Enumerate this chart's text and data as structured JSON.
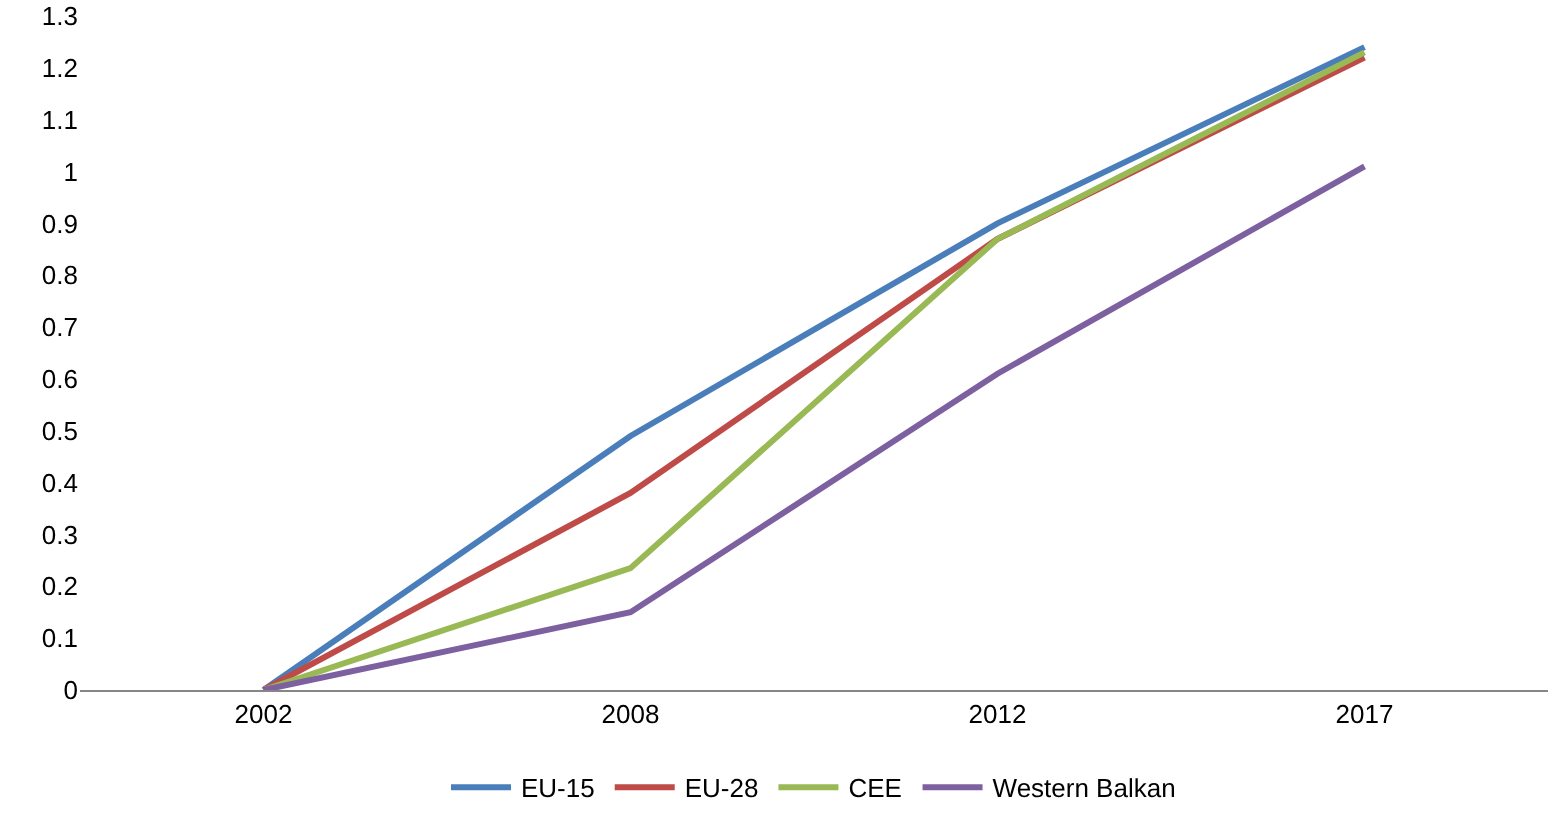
{
  "chart_data": {
    "type": "line",
    "categories": [
      "2002",
      "2008",
      "2012",
      "2017"
    ],
    "series": [
      {
        "name": "EU-15",
        "color": "#4a7ebb",
        "values": [
          0,
          0.49,
          0.9,
          1.24
        ]
      },
      {
        "name": "EU-28",
        "color": "#be4b48",
        "values": [
          0,
          0.38,
          0.87,
          1.22
        ]
      },
      {
        "name": "CEE",
        "color": "#98b954",
        "values": [
          0,
          0.235,
          0.87,
          1.23
        ]
      },
      {
        "name": "Western Balkan",
        "color": "#7d60a0",
        "values": [
          0,
          0.15,
          0.61,
          1.01
        ]
      }
    ],
    "ylim": [
      0,
      1.3
    ],
    "yticks": [
      0,
      0.1,
      0.2,
      0.3,
      0.4,
      0.5,
      0.6,
      0.7,
      0.8,
      0.9,
      1,
      1.1,
      1.2,
      1.3
    ],
    "grid": false,
    "legend": "bottom",
    "marker": "none",
    "line_style": "solid"
  }
}
